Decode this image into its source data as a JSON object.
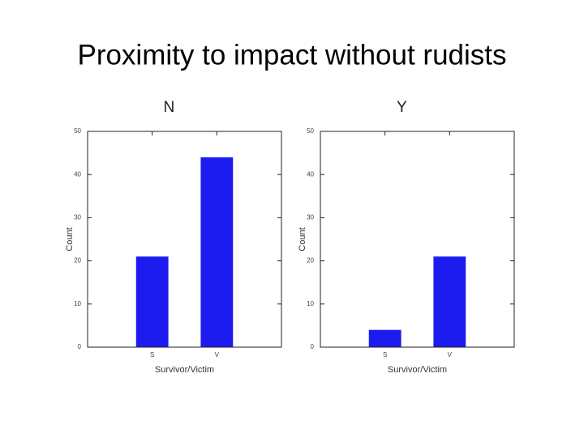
{
  "title": "Proximity to impact without rudists",
  "chart_data": [
    {
      "type": "bar",
      "title": "N",
      "categories": [
        "S",
        "V"
      ],
      "values": [
        21,
        44
      ],
      "color": "#1c1cf0",
      "xlabel": "Survivor/Victim",
      "ylabel": "Count",
      "ylim": [
        0,
        50
      ],
      "yticks": [
        0,
        10,
        20,
        30,
        40,
        50
      ]
    },
    {
      "type": "bar",
      "title": "Y",
      "categories": [
        "S",
        "V"
      ],
      "values": [
        4,
        21
      ],
      "color": "#1c1cf0",
      "xlabel": "Survivor/Victim",
      "ylabel": "Count",
      "ylim": [
        0,
        50
      ],
      "yticks": [
        0,
        10,
        20,
        30,
        40,
        50
      ]
    }
  ]
}
